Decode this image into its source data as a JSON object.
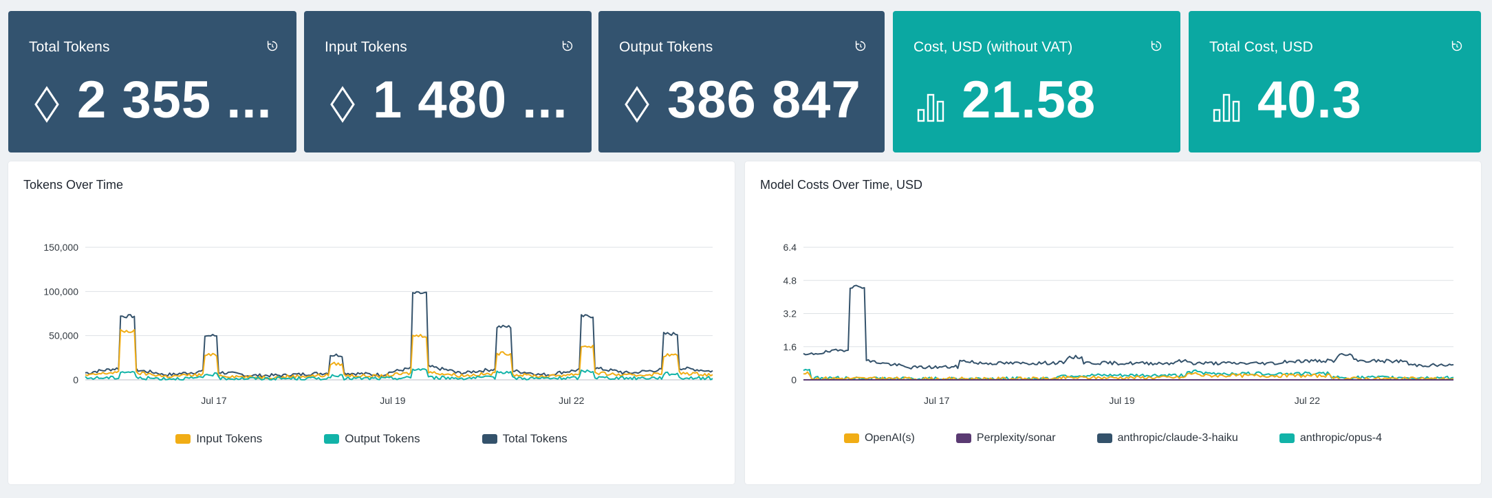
{
  "kpis": [
    {
      "title": "Total Tokens",
      "value": "2 355 ...",
      "icon": "diamond-icon"
    },
    {
      "title": "Input Tokens",
      "value": "1 480 ...",
      "icon": "diamond-icon"
    },
    {
      "title": "Output Tokens",
      "value": "386 847",
      "icon": "diamond-icon"
    },
    {
      "title": "Cost, USD (without VAT)",
      "value": "21.58",
      "icon": "bar-chart-icon"
    },
    {
      "title": "Total Cost, USD",
      "value": "40.3",
      "icon": "bar-chart-icon"
    }
  ],
  "colors": {
    "dark_tile": "#33536f",
    "teal_tile": "#0ba8a2",
    "input": "#f1ad15",
    "output": "#12b3a8",
    "total": "#34526b",
    "perplexity": "#5a3a72"
  },
  "tokens_chart": {
    "title": "Tokens Over Time",
    "legend": [
      "Input Tokens",
      "Output Tokens",
      "Total Tokens"
    ]
  },
  "costs_chart": {
    "title": "Model Costs Over Time, USD",
    "legend": [
      "OpenAI(s)",
      "Perplexity/sonar",
      "anthropic/claude-3-haiku",
      "anthropic/opus-4"
    ]
  },
  "chart_data": [
    {
      "type": "line",
      "title": "Tokens Over Time",
      "x_range": [
        "Jul 15",
        "Jul 25"
      ],
      "x_ticks": [
        "Jul 17",
        "Jul 19",
        "Jul 22"
      ],
      "y_ticks": [
        "0",
        "50,000",
        "100,000",
        "150,000"
      ],
      "ylim": [
        0,
        150000
      ],
      "grid": true,
      "legend_position": "bottom",
      "series": [
        {
          "name": "Total Tokens",
          "x": [
            "Jul 15",
            "Jul 15",
            "Jul 16",
            "Jul 16",
            "Jul 17",
            "Jul 18",
            "Jul 19",
            "Jul 19",
            "Jul 20",
            "Jul 21",
            "Jul 21",
            "Jul 22",
            "Jul 23",
            "Jul 24",
            "Jul 24",
            "Jul 25"
          ],
          "values": [
            8000,
            72000,
            6000,
            50000,
            5000,
            6000,
            28000,
            6000,
            98000,
            8000,
            60000,
            6000,
            72000,
            8000,
            52000,
            10000
          ]
        },
        {
          "name": "Input Tokens",
          "x": [
            "Jul 15",
            "Jul 15",
            "Jul 16",
            "Jul 16",
            "Jul 17",
            "Jul 18",
            "Jul 19",
            "Jul 19",
            "Jul 20",
            "Jul 21",
            "Jul 21",
            "Jul 22",
            "Jul 23",
            "Jul 24",
            "Jul 24",
            "Jul 25"
          ],
          "values": [
            5000,
            55000,
            4000,
            28000,
            3000,
            4000,
            18000,
            4000,
            50000,
            5000,
            30000,
            4000,
            38000,
            5000,
            28000,
            6000
          ]
        },
        {
          "name": "Output Tokens",
          "x": [
            "Jul 15",
            "Jul 15",
            "Jul 16",
            "Jul 16",
            "Jul 17",
            "Jul 18",
            "Jul 19",
            "Jul 19",
            "Jul 20",
            "Jul 21",
            "Jul 21",
            "Jul 22",
            "Jul 23",
            "Jul 24",
            "Jul 24",
            "Jul 25"
          ],
          "values": [
            2000,
            9000,
            1500,
            6000,
            1500,
            1500,
            4000,
            1500,
            12000,
            2000,
            9000,
            1500,
            10000,
            2000,
            7000,
            2000
          ]
        }
      ]
    },
    {
      "type": "line",
      "title": "Model Costs Over Time, USD",
      "x_range": [
        "Jul 15",
        "Jul 25"
      ],
      "x_ticks": [
        "Jul 17",
        "Jul 19",
        "Jul 22"
      ],
      "y_ticks": [
        "0",
        "1.6",
        "3.2",
        "4.8",
        "6.4"
      ],
      "ylim": [
        0,
        6.4
      ],
      "grid": true,
      "legend_position": "bottom",
      "series": [
        {
          "name": "anthropic/claude-3-haiku",
          "x": [
            "Jul 15",
            "Jul 15",
            "Jul 15",
            "Jul 16",
            "Jul 17",
            "Jul 18",
            "Jul 19",
            "Jul 20",
            "Jul 21",
            "Jul 22",
            "Jul 23",
            "Jul 24",
            "Jul 25"
          ],
          "values": [
            1.2,
            4.5,
            0.6,
            0.9,
            0.8,
            1.1,
            0.8,
            0.9,
            0.8,
            0.9,
            1.2,
            0.9,
            0.7
          ]
        },
        {
          "name": "OpenAI(s)",
          "x": [
            "Jul 15",
            "Jul 17",
            "Jul 19",
            "Jul 21",
            "Jul 23",
            "Jul 25"
          ],
          "values": [
            0.3,
            0.05,
            0.1,
            0.3,
            0.2,
            0.05
          ]
        },
        {
          "name": "Perplexity/sonar",
          "x": [
            "Jul 15",
            "Jul 25"
          ],
          "values": [
            0,
            0
          ]
        },
        {
          "name": "anthropic/opus-4",
          "x": [
            "Jul 15",
            "Jul 17",
            "Jul 19",
            "Jul 21",
            "Jul 23",
            "Jul 25"
          ],
          "values": [
            0.5,
            0.05,
            0.2,
            0.4,
            0.3,
            0.1
          ]
        }
      ]
    }
  ]
}
